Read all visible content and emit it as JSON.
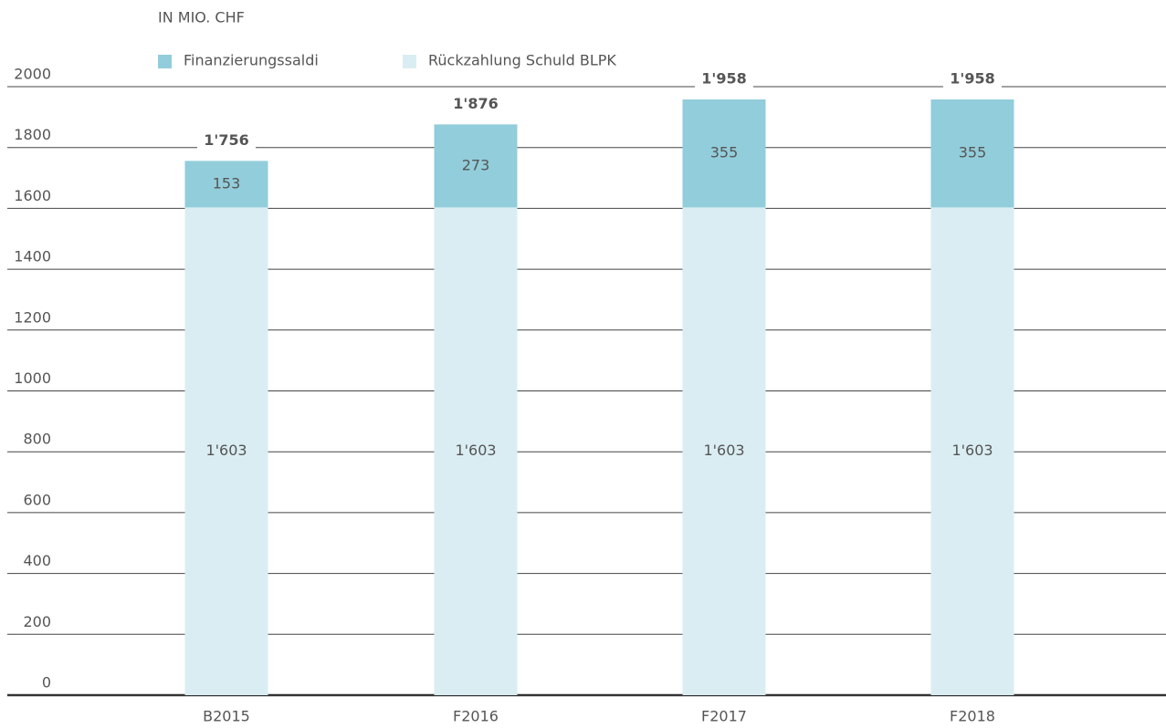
{
  "chart_data": {
    "type": "stacked_bar",
    "subtitle": "IN MIO. CHF",
    "categories": [
      "B2015",
      "F2016",
      "F2017",
      "F2018"
    ],
    "series": [
      {
        "name": "Finanzierungssaldi",
        "color": "#92cddb",
        "values": [
          153,
          273,
          355,
          355
        ]
      },
      {
        "name": "Rückzahlung Schuld BLPK",
        "color": "#daedf2",
        "values": [
          1603,
          1603,
          1603,
          1603
        ],
        "value_labels": [
          "1'603",
          "1'603",
          "1'603",
          "1'603"
        ]
      }
    ],
    "totals": [
      1756,
      1876,
      1958,
      1958
    ],
    "total_labels": [
      "1'756",
      "1'876",
      "1'958",
      "1'958"
    ],
    "ylim": [
      0,
      2000
    ],
    "yticks": [
      0,
      200,
      400,
      600,
      800,
      1000,
      1200,
      1400,
      1600,
      1800,
      2000
    ],
    "grid": true
  }
}
